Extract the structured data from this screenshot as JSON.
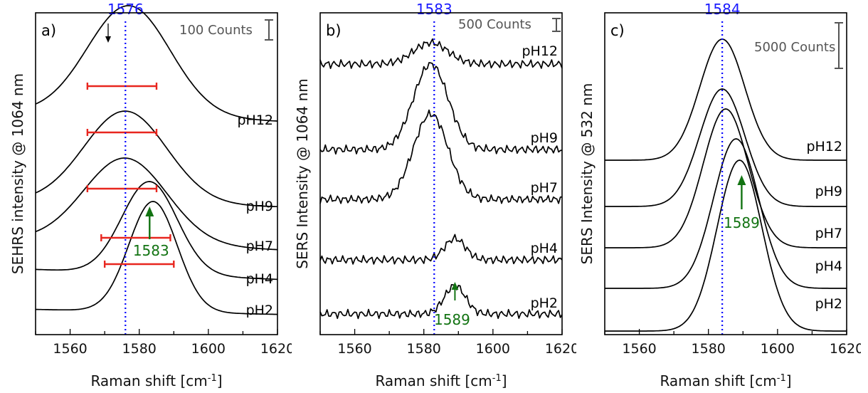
{
  "colors": {
    "dotted": "#0000ff",
    "peak_label": "#1a1aff",
    "arrow": "#127312",
    "fwhm": "#e8261f"
  },
  "chart_data": [
    {
      "id": "a",
      "panel_label": "a)",
      "type": "line",
      "xlabel": "Raman shift [cm-1]",
      "ylabel": "SEHRS intensity @ 1064 nm",
      "xlim": [
        1550,
        1620
      ],
      "xticks": [
        1560,
        1580,
        1600,
        1620
      ],
      "scale_label": "100 Counts",
      "peak_line": {
        "x": 1576,
        "label": "1576"
      },
      "shift_annotation": {
        "x": 1583,
        "label": "1583"
      },
      "top_marker_x": 1571,
      "series": [
        {
          "name": "pH12",
          "peak": 1577,
          "width": 12,
          "amp": 155,
          "base": 163,
          "tail": 0.17
        },
        {
          "name": "pH9",
          "peak": 1576,
          "width": 12,
          "amp": 130,
          "base": 286,
          "tail": 0.1
        },
        {
          "name": "pH7",
          "peak": 1576,
          "width": 12,
          "amp": 120,
          "base": 342,
          "tail": 0.2
        },
        {
          "name": "pH4",
          "peak": 1583,
          "width": 8,
          "amp": 130,
          "base": 385,
          "tail": 0.2
        },
        {
          "name": "pH2",
          "peak": 1584,
          "width": 7,
          "amp": 155,
          "base": 438,
          "tail": 0.1
        }
      ],
      "fwhm_bars": [
        {
          "x1": 1565,
          "x2": 1585
        },
        {
          "x1": 1565,
          "x2": 1585
        },
        {
          "x1": 1565,
          "x2": 1585
        },
        {
          "x1": 1569,
          "x2": 1589
        },
        {
          "x1": 1570,
          "x2": 1590
        }
      ]
    },
    {
      "id": "b",
      "panel_label": "b)",
      "type": "line",
      "xlabel": "Raman shift [cm-1]",
      "ylabel": "SERS Intensity @ 1064 nm",
      "xlim": [
        1550,
        1620
      ],
      "xticks": [
        1560,
        1580,
        1600,
        1620
      ],
      "scale_label": "500 Counts",
      "peak_line": {
        "x": 1583,
        "label": "1583"
      },
      "shift_annotation": {
        "x": 1589,
        "label": "1589"
      },
      "series": [
        {
          "name": "pH12",
          "peak": 1582,
          "width": 5,
          "amp": 30,
          "base": 90,
          "noise": 4
        },
        {
          "name": "pH9",
          "peak": 1582,
          "width": 5,
          "amp": 120,
          "base": 210,
          "noise": 4
        },
        {
          "name": "pH7",
          "peak": 1582,
          "width": 5,
          "amp": 120,
          "base": 280,
          "noise": 4
        },
        {
          "name": "pH4",
          "peak": 1589,
          "width": 3,
          "amp": 30,
          "base": 365,
          "noise": 4
        },
        {
          "name": "pH2",
          "peak": 1589,
          "width": 3,
          "amp": 40,
          "base": 441,
          "noise": 4
        }
      ]
    },
    {
      "id": "c",
      "panel_label": "c)",
      "type": "line",
      "xlabel": "Raman shift [cm-1]",
      "ylabel": "SERS Intensity @ 532 nm",
      "xlim": [
        1550,
        1620
      ],
      "xticks": [
        1560,
        1580,
        1600,
        1620
      ],
      "scale_label": "5000 Counts",
      "peak_line": {
        "x": 1584,
        "label": "1584"
      },
      "shift_annotation": {
        "x": 1589,
        "label": "1589"
      },
      "series": [
        {
          "name": "pH12",
          "peak": 1584,
          "width": 6.5,
          "amp": 170,
          "base": 225,
          "tail": 0.0
        },
        {
          "name": "pH9",
          "peak": 1584,
          "width": 6.5,
          "amp": 165,
          "base": 290,
          "tail": 0.0
        },
        {
          "name": "pH7",
          "peak": 1585,
          "width": 6.5,
          "amp": 195,
          "base": 348,
          "tail": 0.0
        },
        {
          "name": "pH4",
          "peak": 1588,
          "width": 6.5,
          "amp": 210,
          "base": 405,
          "tail": 0.0
        },
        {
          "name": "pH2",
          "peak": 1589,
          "width": 6.5,
          "amp": 240,
          "base": 465,
          "tail": 0.0
        }
      ]
    }
  ]
}
